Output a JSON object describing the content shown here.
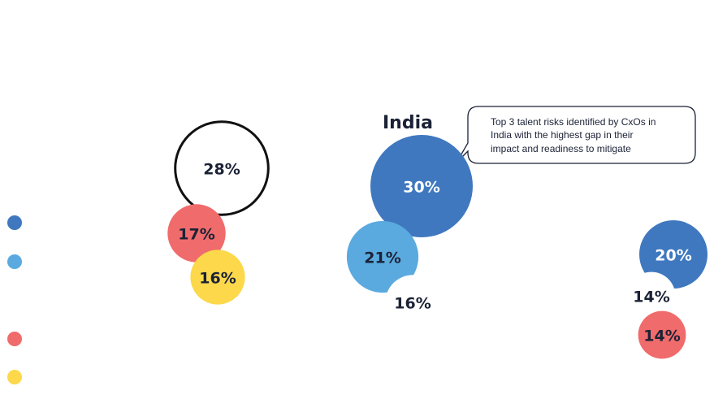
{
  "chart_data": {
    "type": "bubble",
    "title": "India",
    "annotation": [
      "Top 3 talent risks identified by CxOs in",
      "India with the highest gap in their",
      "impact and readiness to mitigate"
    ],
    "legend_colors": [
      "#3f78bf",
      "#5aaae0",
      "#f06b6b",
      "#fcd84a"
    ],
    "values": [
      28,
      17,
      16,
      30,
      21,
      16,
      20,
      14,
      14
    ],
    "value_labels": [
      "28%",
      "17%",
      "16%",
      "30%",
      "21%",
      "16%",
      "20%",
      "14%",
      "14%"
    ],
    "colors": [
      "#ffffff",
      "#f06b6b",
      "#fcd84a",
      "#3f78bf",
      "#5aaae0",
      "#ffffff",
      "#3f78bf",
      "#ffffff",
      "#f06b6b"
    ]
  }
}
